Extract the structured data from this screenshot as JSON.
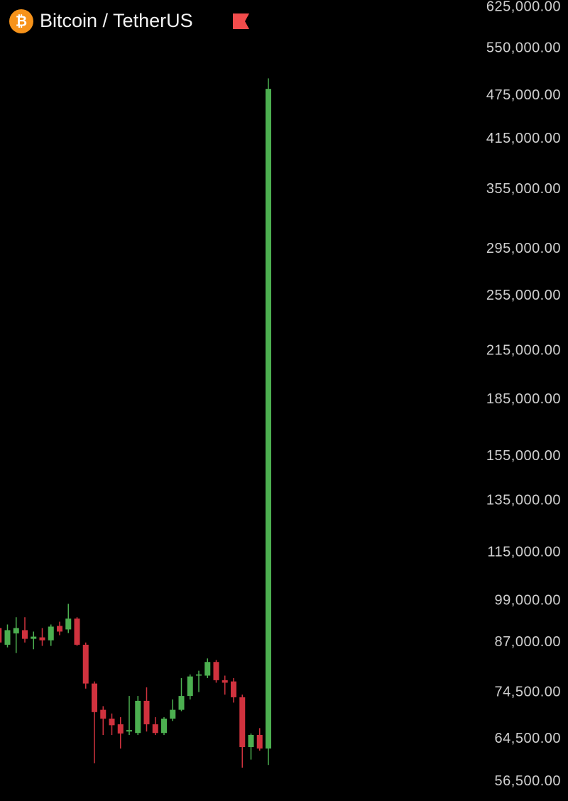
{
  "chart_data": {
    "type": "candlestick",
    "title": "Bitcoin / TetherUS",
    "symbol": "₿",
    "log_scale": true,
    "up_color": "#4caf50",
    "down_color": "#d0323e",
    "ylim": [
      53200,
      639000
    ],
    "yticks": [
      {
        "value": 625000,
        "label": "625,000.00"
      },
      {
        "value": 550000,
        "label": "550,000.00"
      },
      {
        "value": 475000,
        "label": "475,000.00"
      },
      {
        "value": 415000,
        "label": "415,000.00"
      },
      {
        "value": 355000,
        "label": "355,000.00"
      },
      {
        "value": 295000,
        "label": "295,000.00"
      },
      {
        "value": 255000,
        "label": "255,000.00"
      },
      {
        "value": 215000,
        "label": "215,000.00"
      },
      {
        "value": 185000,
        "label": "185,000.00"
      },
      {
        "value": 155000,
        "label": "155,000.00"
      },
      {
        "value": 135000,
        "label": "135,000.00"
      },
      {
        "value": 115000,
        "label": "115,000.00"
      },
      {
        "value": 99000,
        "label": "99,000.00"
      },
      {
        "value": 87000,
        "label": "87,000.00"
      },
      {
        "value": 74500,
        "label": "74,500.00"
      },
      {
        "value": 64500,
        "label": "64,500.00"
      },
      {
        "value": 56500,
        "label": "56,500.00"
      }
    ],
    "open": [
      91000,
      86400,
      89500,
      90400,
      88000,
      88400,
      87600,
      91600,
      90600,
      93700,
      86400,
      76600,
      70600,
      68700,
      67500,
      66000,
      65700,
      72600,
      67500,
      65700,
      68700,
      70600,
      73700,
      78500,
      78500,
      81900,
      77400,
      77100,
      73400,
      62900,
      65300,
      62600
    ],
    "high": [
      94500,
      92000,
      94100,
      94100,
      90000,
      91000,
      92000,
      92800,
      98100,
      94100,
      87000,
      77100,
      71400,
      69800,
      69000,
      73700,
      73700,
      75700,
      69000,
      69000,
      72900,
      77900,
      78800,
      79700,
      82800,
      82400,
      78500,
      77900,
      74000,
      65600,
      66700,
      501000
    ],
    "low": [
      84200,
      85700,
      84200,
      87000,
      85200,
      86100,
      86100,
      89000,
      89600,
      86100,
      75400,
      59800,
      65300,
      65300,
      62600,
      65300,
      65300,
      66000,
      65300,
      65300,
      68200,
      70300,
      72900,
      74600,
      77900,
      76800,
      74000,
      72200,
      59000,
      60500,
      62200,
      59500
    ],
    "close": [
      87000,
      90400,
      91000,
      88000,
      88600,
      87600,
      91400,
      90000,
      93700,
      86400,
      76600,
      70100,
      68700,
      67300,
      65600,
      66300,
      72600,
      67500,
      65700,
      68700,
      70600,
      73700,
      78300,
      78800,
      81900,
      77400,
      76800,
      73400,
      62900,
      65300,
      62600,
      485000
    ]
  }
}
